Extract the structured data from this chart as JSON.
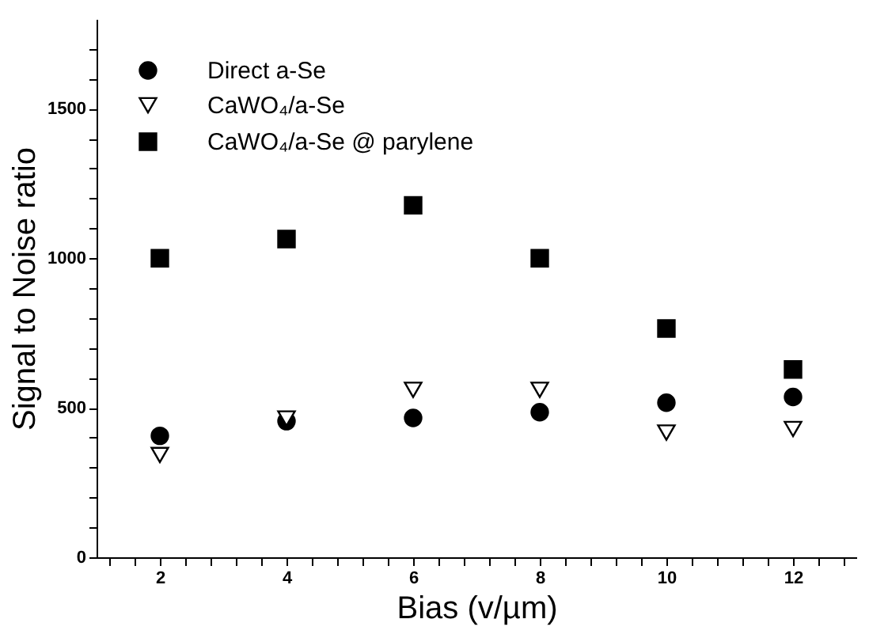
{
  "chart_data": {
    "type": "scatter",
    "xlabel": "Bias (v/µm)",
    "ylabel": "Signal to Noise ratio",
    "x": [
      2,
      4,
      6,
      8,
      10,
      12
    ],
    "series": [
      {
        "name": "Direct a-Se",
        "color": "#000000",
        "marker": "circle",
        "values": [
          406,
          455,
          466,
          485,
          517,
          536
        ]
      },
      {
        "name": "CaWO₄/a-Se",
        "color": "#000000",
        "marker": "triangle",
        "values": [
          342,
          464,
          560,
          560,
          417,
          429
        ]
      },
      {
        "name": "CaWO₄/a-Se @ parylene",
        "color": "#000000",
        "marker": "square",
        "values": [
          1000,
          1064,
          1177,
          1000,
          765,
          628
        ]
      }
    ],
    "xlim": [
      1,
      13
    ],
    "xticks": [
      {
        "value": 1.2,
        "label": null
      },
      {
        "value": 1.6,
        "label": null
      },
      2,
      {
        "value": 2.4,
        "label": null
      },
      {
        "value": 2.8,
        "label": null
      },
      {
        "value": 3.2,
        "label": null
      },
      {
        "value": 3.6,
        "label": null
      },
      4,
      {
        "value": 4.4,
        "label": null
      },
      {
        "value": 4.8,
        "label": null
      },
      {
        "value": 5.2,
        "label": null
      },
      {
        "value": 5.6,
        "label": null
      },
      6,
      {
        "value": 6.4,
        "label": null
      },
      {
        "value": 6.8,
        "label": null
      },
      {
        "value": 7.2,
        "label": null
      },
      {
        "value": 7.6,
        "label": null
      },
      8,
      {
        "value": 8.4,
        "label": null
      },
      {
        "value": 8.8,
        "label": null
      },
      {
        "value": 9.2,
        "label": null
      },
      {
        "value": 9.6,
        "label": null
      },
      10,
      {
        "value": 10.4,
        "label": null
      },
      {
        "value": 10.8,
        "label": null
      },
      {
        "value": 11.2,
        "label": null
      },
      {
        "value": 11.6,
        "label": null
      },
      12,
      {
        "value": 12.4,
        "label": null
      },
      {
        "value": 12.8,
        "label": null
      }
    ],
    "ylim": [
      0,
      1800
    ],
    "yticks": [
      0,
      {
        "value": 100,
        "label": null
      },
      {
        "value": 200,
        "label": null
      },
      {
        "value": 300,
        "label": null
      },
      {
        "value": 400,
        "label": null
      },
      500,
      {
        "value": 600,
        "label": null
      },
      {
        "value": 700,
        "label": null
      },
      {
        "value": 800,
        "label": null
      },
      {
        "value": 900,
        "label": null
      },
      1000,
      {
        "value": 1100,
        "label": null
      },
      {
        "value": 1200,
        "label": null
      },
      {
        "value": 1300,
        "label": null
      },
      {
        "value": 1400,
        "label": null
      },
      1500,
      {
        "value": 1600,
        "label": null
      },
      {
        "value": 1700,
        "label": null
      }
    ],
    "grid": false,
    "legend": "top left"
  }
}
